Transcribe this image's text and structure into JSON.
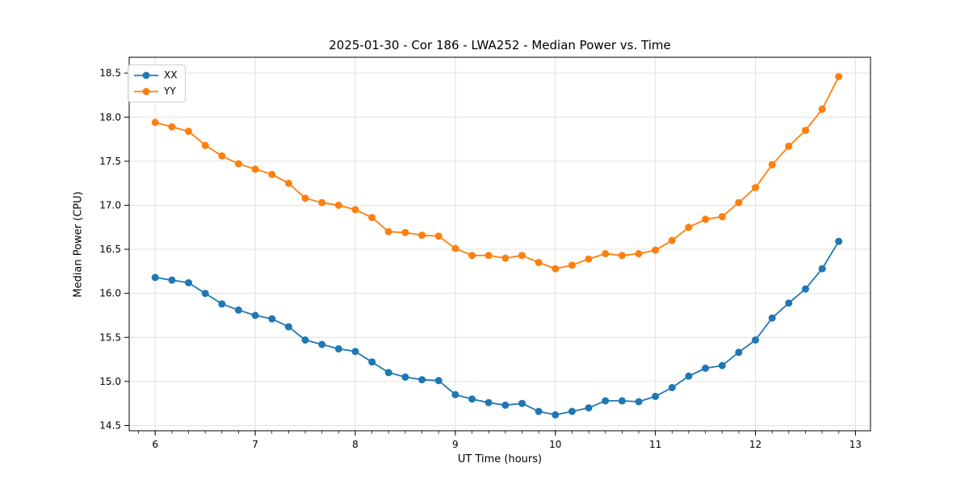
{
  "chart_data": {
    "type": "line",
    "title": "2025-01-30 - Cor 186 - LWA252 - Median Power vs. Time",
    "xlabel": "UT Time (hours)",
    "ylabel": "Median Power (CPU)",
    "xlim": [
      5.74,
      13.15
    ],
    "ylim": [
      14.44,
      18.68
    ],
    "xticks": [
      6,
      7,
      8,
      9,
      10,
      11,
      12,
      13
    ],
    "yticks": [
      14.5,
      15.0,
      15.5,
      16.0,
      16.5,
      17.0,
      17.5,
      18.0,
      18.5
    ],
    "minor_xtick_step": 0.166667,
    "grid": true,
    "grid_color": "#e0e0e0",
    "legend_position": "upper left",
    "x": [
      6.0,
      6.167,
      6.333,
      6.5,
      6.667,
      6.833,
      7.0,
      7.167,
      7.333,
      7.5,
      7.667,
      7.833,
      8.0,
      8.167,
      8.333,
      8.5,
      8.667,
      8.833,
      9.0,
      9.167,
      9.333,
      9.5,
      9.667,
      9.833,
      10.0,
      10.167,
      10.333,
      10.5,
      10.667,
      10.833,
      11.0,
      11.167,
      11.333,
      11.5,
      11.667,
      11.833,
      12.0,
      12.167,
      12.333,
      12.5,
      12.667,
      12.833
    ],
    "series": [
      {
        "name": "XX",
        "color": "#1f77b4",
        "values": [
          16.18,
          16.15,
          16.12,
          16.0,
          15.88,
          15.81,
          15.75,
          15.71,
          15.62,
          15.47,
          15.42,
          15.37,
          15.34,
          15.22,
          15.1,
          15.05,
          15.02,
          15.01,
          14.85,
          14.8,
          14.76,
          14.73,
          14.75,
          14.66,
          14.62,
          14.66,
          14.7,
          14.78,
          14.78,
          14.77,
          14.83,
          14.93,
          15.06,
          15.15,
          15.18,
          15.33,
          15.47,
          15.72,
          15.89,
          16.05,
          16.28,
          16.59
        ]
      },
      {
        "name": "YY",
        "color": "#ff7f0e",
        "values": [
          17.94,
          17.89,
          17.84,
          17.68,
          17.56,
          17.47,
          17.41,
          17.35,
          17.25,
          17.08,
          17.03,
          17.0,
          16.95,
          16.86,
          16.7,
          16.69,
          16.66,
          16.65,
          16.51,
          16.43,
          16.43,
          16.4,
          16.43,
          16.35,
          16.28,
          16.32,
          16.39,
          16.45,
          16.43,
          16.45,
          16.49,
          16.6,
          16.75,
          16.84,
          16.87,
          17.03,
          17.2,
          17.46,
          17.67,
          17.85,
          18.09,
          18.46
        ]
      }
    ]
  }
}
